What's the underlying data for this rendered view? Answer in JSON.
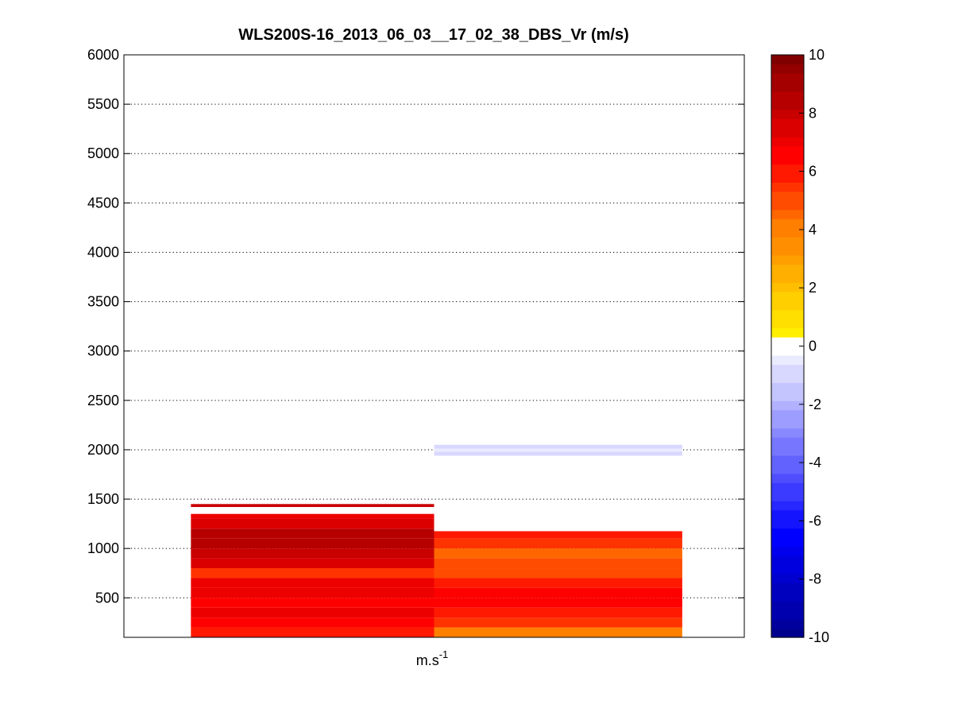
{
  "chart_data": {
    "type": "heatmap",
    "title": "WLS200S-16_2013_06_03__17_02_38_DBS_Vr (m/s)",
    "xlabel_base": "m.s",
    "xlabel_sup": "-1",
    "ylabel": "",
    "ylim": [
      100,
      6000
    ],
    "yticks": [
      500,
      1000,
      1500,
      2000,
      2500,
      3000,
      3500,
      4000,
      4500,
      5000,
      5500,
      6000
    ],
    "grid": true,
    "colorbar": {
      "clim": [
        -10,
        10
      ],
      "ticks": [
        -10,
        -8,
        -6,
        -4,
        -2,
        0,
        2,
        4,
        6,
        8,
        10
      ],
      "colors": {
        "low": "#00008f",
        "blue": "#0000ff",
        "white": "#ffffff",
        "yellow": "#ffff00",
        "orange": "#ff7f00",
        "red": "#ff0000",
        "high": "#800000"
      }
    },
    "columns": [
      {
        "x_range": [
          0.52,
          1.5
        ],
        "bins": [
          {
            "z": [
              100,
              200
            ],
            "v": 6.0
          },
          {
            "z": [
              200,
              300
            ],
            "v": 6.6
          },
          {
            "z": [
              300,
              400
            ],
            "v": 7.2
          },
          {
            "z": [
              400,
              500
            ],
            "v": 6.3
          },
          {
            "z": [
              500,
              600
            ],
            "v": 7.0
          },
          {
            "z": [
              600,
              700
            ],
            "v": 6.8
          },
          {
            "z": [
              700,
              800
            ],
            "v": 5.6
          },
          {
            "z": [
              800,
              900
            ],
            "v": 7.3
          },
          {
            "z": [
              900,
              1000
            ],
            "v": 8.2
          },
          {
            "z": [
              1000,
              1100
            ],
            "v": 8.6
          },
          {
            "z": [
              1100,
              1200
            ],
            "v": 8.4
          },
          {
            "z": [
              1200,
              1300
            ],
            "v": 7.6
          },
          {
            "z": [
              1300,
              1350
            ],
            "v": 7.0
          },
          {
            "z": [
              1420,
              1450
            ],
            "v": 7.8
          }
        ]
      },
      {
        "x_range": [
          1.5,
          2.5
        ],
        "bins": [
          {
            "z": [
              100,
              200
            ],
            "v": 4.2
          },
          {
            "z": [
              200,
              300
            ],
            "v": 5.4
          },
          {
            "z": [
              300,
              400
            ],
            "v": 6.0
          },
          {
            "z": [
              400,
              500
            ],
            "v": 6.3
          },
          {
            "z": [
              500,
              600
            ],
            "v": 6.5
          },
          {
            "z": [
              600,
              700
            ],
            "v": 5.8
          },
          {
            "z": [
              700,
              800
            ],
            "v": 4.8
          },
          {
            "z": [
              800,
              900
            ],
            "v": 5.2
          },
          {
            "z": [
              900,
              1000
            ],
            "v": 4.6
          },
          {
            "z": [
              1000,
              1100
            ],
            "v": 5.5
          },
          {
            "z": [
              1100,
              1175
            ],
            "v": 5.9
          },
          {
            "z": [
              1940,
              1980
            ],
            "v": -1.0
          },
          {
            "z": [
              1980,
              2010
            ],
            "v": -0.3
          },
          {
            "z": [
              2010,
              2050
            ],
            "v": -1.0
          }
        ]
      }
    ]
  }
}
